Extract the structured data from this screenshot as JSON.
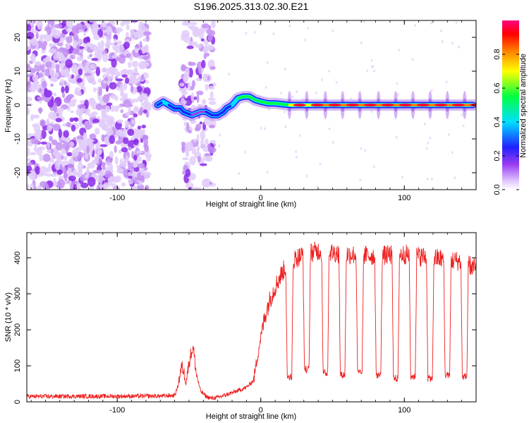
{
  "title": "S196.2025.313.02.30.E21",
  "chart_data": [
    {
      "type": "heatmap",
      "name": "spectrogram",
      "xlabel": "Height of straight line (km)",
      "ylabel": "Frequency (Hz)",
      "xlim": [
        -163,
        150
      ],
      "ylim": [
        -25,
        25
      ],
      "xticks": [
        -100,
        0,
        100
      ],
      "yticks": [
        -20,
        -10,
        0,
        10,
        20
      ],
      "colorbar": {
        "label": "Normalized spectral amplitude",
        "range": [
          0,
          1
        ],
        "ticks": [
          "0.0",
          "0.2",
          "0.4",
          "0.6",
          "0.8"
        ],
        "colors": [
          "#ffffff",
          "#d8b8f8",
          "#9a3cf0",
          "#2020ff",
          "#00ffff",
          "#00ff40",
          "#ffff00",
          "#ff8000",
          "#ff0000",
          "#ff0080"
        ]
      },
      "noise_regions": [
        {
          "x_from": -163,
          "x_to": -78,
          "amplitude": 0.2
        },
        {
          "x_from": -55,
          "x_to": -33,
          "amplitude": 0.15
        }
      ],
      "track": {
        "x": [
          -72,
          -68,
          -64,
          -60,
          -56,
          -54,
          -48,
          -42,
          -38,
          -34,
          -30,
          -26,
          -24,
          -20,
          -16,
          -12,
          -8,
          -4,
          0,
          5,
          10,
          20,
          30,
          40,
          50,
          60,
          70,
          80,
          90,
          100,
          110,
          120,
          130,
          140,
          148
        ],
        "freq": [
          0,
          1,
          0,
          -1,
          -1,
          -2,
          -3,
          -2,
          -2,
          -3,
          -3,
          -2,
          -1,
          0,
          2,
          2.5,
          2.5,
          1.5,
          1,
          0.5,
          0.5,
          0,
          0,
          0,
          0,
          0,
          0,
          0,
          0,
          0,
          0,
          0,
          0,
          0,
          0
        ],
        "amplitude": [
          0.35,
          0.4,
          0.35,
          0.3,
          0.3,
          0.25,
          0.2,
          0.2,
          0.3,
          0.35,
          0.35,
          0.3,
          0.35,
          0.4,
          0.6,
          0.65,
          0.6,
          0.55,
          0.6,
          0.55,
          0.55,
          0.75,
          0.8,
          0.82,
          0.85,
          0.85,
          0.88,
          0.88,
          0.9,
          0.9,
          0.9,
          0.9,
          0.9,
          0.9,
          0.9
        ]
      },
      "spikes_x": [
        20,
        32,
        45,
        57,
        69,
        82,
        94,
        106,
        118,
        130,
        142
      ]
    },
    {
      "type": "line",
      "name": "snr",
      "xlabel": "Height of straight line (km)",
      "ylabel": "SNR (10 * v/v)",
      "xlim": [
        -163,
        150
      ],
      "ylim": [
        0,
        470
      ],
      "xticks": [
        -100,
        0,
        100
      ],
      "yticks": [
        0,
        100,
        200,
        300,
        400
      ],
      "color": "#ee2020",
      "baseline_points": {
        "x": [
          -163,
          -70,
          -60,
          -58,
          -55,
          -52,
          -49,
          -47,
          -45,
          -42,
          -38,
          -35,
          -30,
          -20,
          -10,
          -5,
          -3,
          0,
          3,
          6,
          10,
          15,
          20,
          25,
          30,
          40,
          60,
          80,
          100,
          120,
          140,
          150
        ],
        "y": [
          15,
          16,
          18,
          40,
          100,
          60,
          130,
          150,
          80,
          30,
          15,
          10,
          12,
          25,
          40,
          60,
          110,
          180,
          240,
          280,
          320,
          360,
          390,
          400,
          410,
          420,
          410,
          405,
          410,
          400,
          390,
          370
        ]
      },
      "dips": [
        {
          "x": 20,
          "y": 70
        },
        {
          "x": 32,
          "y": 90
        },
        {
          "x": 45,
          "y": 80
        },
        {
          "x": 57,
          "y": 75
        },
        {
          "x": 69,
          "y": 80
        },
        {
          "x": 82,
          "y": 75
        },
        {
          "x": 94,
          "y": 65
        },
        {
          "x": 106,
          "y": 70
        },
        {
          "x": 118,
          "y": 65
        },
        {
          "x": 130,
          "y": 75
        },
        {
          "x": 142,
          "y": 70
        }
      ]
    }
  ]
}
